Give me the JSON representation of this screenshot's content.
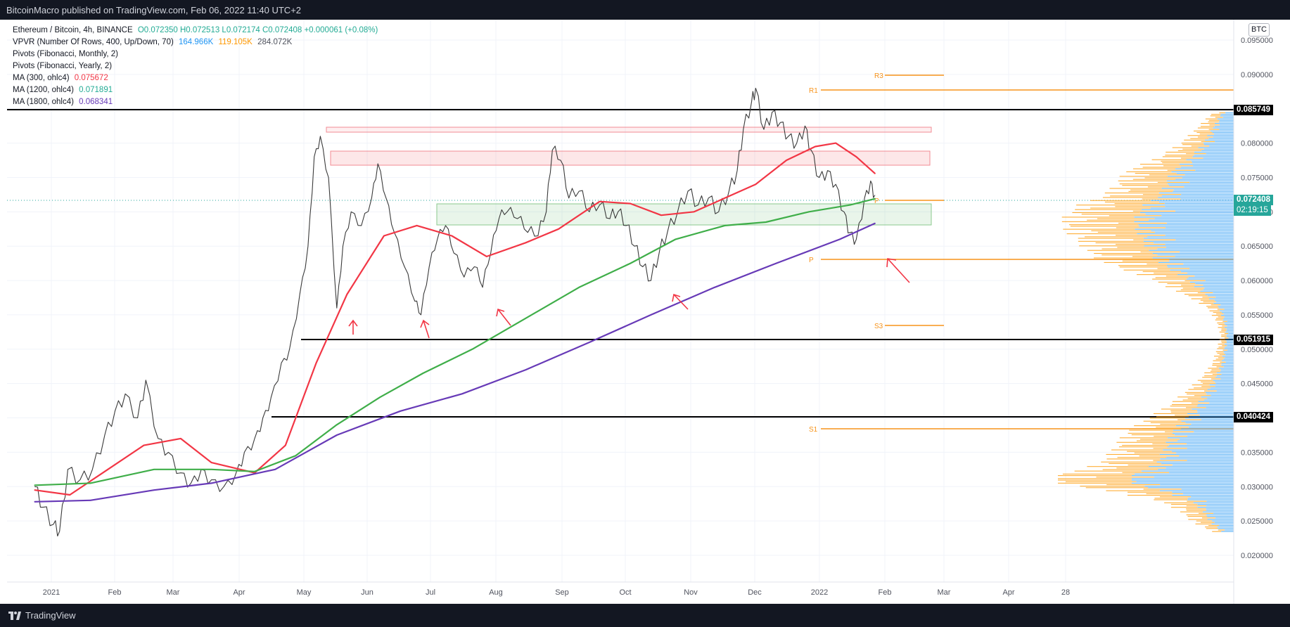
{
  "header": {
    "published": "BitcoinMacro published on TradingView.com, Feb 06, 2022 11:40 UTC+2"
  },
  "footer": {
    "brand": "TradingView"
  },
  "symbol_badge": "BTC",
  "legend": {
    "main": {
      "title": "Ethereum / Bitcoin, 4h, BINANCE",
      "ohlc": "O0.072350 H0.072513 L0.072174 C0.072408 +0.000061 (+0.08%)"
    },
    "vpvr": {
      "label": "VPVR (Number Of Rows, 400, Up/Down, 70)",
      "v1": "164.966K",
      "v2": "119.105K",
      "v3": "284.072K"
    },
    "pivots_monthly": "Pivots (Fibonacci, Monthly, 2)",
    "pivots_yearly": "Pivots (Fibonacci, Yearly, 2)",
    "ma300": {
      "label": "MA (300, ohlc4)",
      "value": "0.075672"
    },
    "ma1200": {
      "label": "MA (1200, ohlc4)",
      "value": "0.071891"
    },
    "ma1800": {
      "label": "MA (1800, ohlc4)",
      "value": "0.068341"
    }
  },
  "price_tags": {
    "level_top": "0.085749",
    "current": "0.072408",
    "countdown": "02:19:15",
    "level_mid": "0.051915",
    "level_low": "0.040424"
  },
  "pivot_labels": {
    "r3": "R3",
    "r1": "R1",
    "p_m": "P",
    "p_y": "P",
    "s3": "S3",
    "s1": "S1"
  },
  "colors": {
    "ma300": "#f23645",
    "ma1200": "#22ab94",
    "ma1200_line": "#3fae49",
    "ma1800": "#673ab7",
    "vpvr_up": "#2196f3",
    "vpvr_down": "#ff9800",
    "pivot": "#f7931a",
    "price_tag": "#26a69a"
  },
  "chart_data": {
    "type": "line",
    "title": "Ethereum / Bitcoin, 4h, BINANCE",
    "x_ticks": [
      "2021",
      "Feb",
      "Mar",
      "Apr",
      "May",
      "Jun",
      "Jul",
      "Aug",
      "Sep",
      "Oct",
      "Nov",
      "Dec",
      "2022",
      "Feb",
      "Mar",
      "Apr",
      "28"
    ],
    "y_ticks": [
      0.02,
      0.025,
      0.03,
      0.035,
      0.04,
      0.045,
      0.05,
      0.055,
      0.06,
      0.065,
      0.07,
      0.075,
      0.08,
      0.085,
      0.09,
      0.095
    ],
    "ylim": [
      0.0175,
      0.0995
    ],
    "horizontal_levels": [
      0.085749,
      0.051915,
      0.040424
    ],
    "series": [
      {
        "name": "Ethereum / Bitcoin",
        "points": [
          [
            "2020-12-24",
            0.03
          ],
          [
            "2020-12-28",
            0.027
          ],
          [
            "2021-01-02",
            0.0245
          ],
          [
            "2021-01-05",
            0.0235
          ],
          [
            "2021-01-09",
            0.0325
          ],
          [
            "2021-01-15",
            0.031
          ],
          [
            "2021-01-21",
            0.0325
          ],
          [
            "2021-01-27",
            0.0375
          ],
          [
            "2021-02-01",
            0.041
          ],
          [
            "2021-02-06",
            0.0435
          ],
          [
            "2021-02-12",
            0.04
          ],
          [
            "2021-02-16",
            0.0455
          ],
          [
            "2021-02-22",
            0.037
          ],
          [
            "2021-02-27",
            0.035
          ],
          [
            "2021-03-05",
            0.032
          ],
          [
            "2021-03-10",
            0.0305
          ],
          [
            "2021-03-15",
            0.0325
          ],
          [
            "2021-03-20",
            0.031
          ],
          [
            "2021-03-26",
            0.03
          ],
          [
            "2021-04-01",
            0.032
          ],
          [
            "2021-04-05",
            0.035
          ],
          [
            "2021-04-10",
            0.037
          ],
          [
            "2021-04-14",
            0.04
          ],
          [
            "2021-04-18",
            0.043
          ],
          [
            "2021-04-23",
            0.048
          ],
          [
            "2021-04-27",
            0.05
          ],
          [
            "2021-05-02",
            0.058
          ],
          [
            "2021-05-06",
            0.065
          ],
          [
            "2021-05-09",
            0.078
          ],
          [
            "2021-05-12",
            0.081
          ],
          [
            "2021-05-16",
            0.075
          ],
          [
            "2021-05-20",
            0.056
          ],
          [
            "2021-05-23",
            0.065
          ],
          [
            "2021-05-27",
            0.07
          ],
          [
            "2021-06-01",
            0.068
          ],
          [
            "2021-06-06",
            0.072
          ],
          [
            "2021-06-09",
            0.077
          ],
          [
            "2021-06-13",
            0.072
          ],
          [
            "2021-06-17",
            0.067
          ],
          [
            "2021-06-22",
            0.062
          ],
          [
            "2021-06-27",
            0.057
          ],
          [
            "2021-06-30",
            0.055
          ],
          [
            "2021-07-04",
            0.062
          ],
          [
            "2021-07-08",
            0.066
          ],
          [
            "2021-07-12",
            0.068
          ],
          [
            "2021-07-16",
            0.064
          ],
          [
            "2021-07-21",
            0.0605
          ],
          [
            "2021-07-26",
            0.062
          ],
          [
            "2021-07-30",
            0.059
          ],
          [
            "2021-08-03",
            0.064
          ],
          [
            "2021-08-07",
            0.069
          ],
          [
            "2021-08-11",
            0.07
          ],
          [
            "2021-08-16",
            0.069
          ],
          [
            "2021-08-21",
            0.067
          ],
          [
            "2021-08-26",
            0.0665
          ],
          [
            "2021-08-30",
            0.07
          ],
          [
            "2021-09-02",
            0.079
          ],
          [
            "2021-09-06",
            0.0775
          ],
          [
            "2021-09-10",
            0.072
          ],
          [
            "2021-09-15",
            0.073
          ],
          [
            "2021-09-20",
            0.07
          ],
          [
            "2021-09-25",
            0.071
          ],
          [
            "2021-09-30",
            0.069
          ],
          [
            "2021-10-04",
            0.07
          ],
          [
            "2021-10-08",
            0.068
          ],
          [
            "2021-10-12",
            0.065
          ],
          [
            "2021-10-16",
            0.062
          ],
          [
            "2021-10-20",
            0.06
          ],
          [
            "2021-10-24",
            0.064
          ],
          [
            "2021-10-28",
            0.067
          ],
          [
            "2021-11-02",
            0.07
          ],
          [
            "2021-11-07",
            0.073
          ],
          [
            "2021-11-12",
            0.071
          ],
          [
            "2021-11-17",
            0.072
          ],
          [
            "2021-11-22",
            0.07
          ],
          [
            "2021-11-27",
            0.073
          ],
          [
            "2021-12-01",
            0.076
          ],
          [
            "2021-12-04",
            0.082
          ],
          [
            "2021-12-08",
            0.086
          ],
          [
            "2021-12-10",
            0.088
          ],
          [
            "2021-12-14",
            0.082
          ],
          [
            "2021-12-18",
            0.0845
          ],
          [
            "2021-12-22",
            0.083
          ],
          [
            "2021-12-26",
            0.081
          ],
          [
            "2021-12-30",
            0.08
          ],
          [
            "2022-01-03",
            0.0825
          ],
          [
            "2022-01-06",
            0.079
          ],
          [
            "2022-01-10",
            0.075
          ],
          [
            "2022-01-14",
            0.076
          ],
          [
            "2022-01-18",
            0.074
          ],
          [
            "2022-01-22",
            0.07
          ],
          [
            "2022-01-25",
            0.067
          ],
          [
            "2022-01-28",
            0.066
          ],
          [
            "2022-02-01",
            0.072
          ],
          [
            "2022-02-04",
            0.0745
          ],
          [
            "2022-02-06",
            0.0724
          ]
        ]
      },
      {
        "name": "MA (300, ohlc4)",
        "points": [
          [
            "2020-12-24",
            0.0295
          ],
          [
            "2021-01-10",
            0.0288
          ],
          [
            "2021-01-25",
            0.0318
          ],
          [
            "2021-02-15",
            0.036
          ],
          [
            "2021-03-05",
            0.037
          ],
          [
            "2021-03-20",
            0.0335
          ],
          [
            "2021-04-10",
            0.032
          ],
          [
            "2021-04-25",
            0.036
          ],
          [
            "2021-05-10",
            0.048
          ],
          [
            "2021-05-25",
            0.058
          ],
          [
            "2021-06-12",
            0.0665
          ],
          [
            "2021-06-28",
            0.068
          ],
          [
            "2021-07-15",
            0.0665
          ],
          [
            "2021-08-01",
            0.0635
          ],
          [
            "2021-08-20",
            0.0655
          ],
          [
            "2021-09-05",
            0.0675
          ],
          [
            "2021-09-25",
            0.0715
          ],
          [
            "2021-10-10",
            0.0712
          ],
          [
            "2021-10-25",
            0.0695
          ],
          [
            "2021-11-10",
            0.07
          ],
          [
            "2021-11-25",
            0.072
          ],
          [
            "2021-12-10",
            0.074
          ],
          [
            "2021-12-25",
            0.0775
          ],
          [
            "2022-01-08",
            0.0795
          ],
          [
            "2022-01-18",
            0.08
          ],
          [
            "2022-01-28",
            0.078
          ],
          [
            "2022-02-06",
            0.0756
          ]
        ]
      },
      {
        "name": "MA (1200, ohlc4)",
        "points": [
          [
            "2020-12-24",
            0.0302
          ],
          [
            "2021-01-20",
            0.0305
          ],
          [
            "2021-02-20",
            0.0325
          ],
          [
            "2021-03-20",
            0.0325
          ],
          [
            "2021-04-10",
            0.0322
          ],
          [
            "2021-04-30",
            0.0345
          ],
          [
            "2021-05-20",
            0.039
          ],
          [
            "2021-06-10",
            0.043
          ],
          [
            "2021-07-01",
            0.0465
          ],
          [
            "2021-07-25",
            0.05
          ],
          [
            "2021-08-20",
            0.0545
          ],
          [
            "2021-09-15",
            0.059
          ],
          [
            "2021-10-10",
            0.0625
          ],
          [
            "2021-11-01",
            0.066
          ],
          [
            "2021-11-25",
            0.068
          ],
          [
            "2021-12-15",
            0.0685
          ],
          [
            "2022-01-05",
            0.07
          ],
          [
            "2022-01-25",
            0.071
          ],
          [
            "2022-02-06",
            0.0719
          ]
        ]
      },
      {
        "name": "MA (1800, ohlc4)",
        "points": [
          [
            "2020-12-24",
            0.0278
          ],
          [
            "2021-01-20",
            0.028
          ],
          [
            "2021-02-20",
            0.0295
          ],
          [
            "2021-03-20",
            0.0305
          ],
          [
            "2021-04-20",
            0.0325
          ],
          [
            "2021-05-20",
            0.0375
          ],
          [
            "2021-06-20",
            0.041
          ],
          [
            "2021-07-20",
            0.0435
          ],
          [
            "2021-08-20",
            0.047
          ],
          [
            "2021-09-20",
            0.051
          ],
          [
            "2021-10-20",
            0.055
          ],
          [
            "2021-11-20",
            0.059
          ],
          [
            "2021-12-20",
            0.0625
          ],
          [
            "2022-01-20",
            0.066
          ],
          [
            "2022-02-06",
            0.0683
          ]
        ]
      }
    ]
  }
}
